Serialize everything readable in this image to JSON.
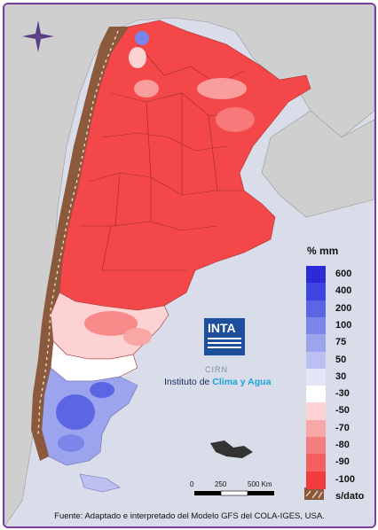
{
  "legend": {
    "unit": "% mm",
    "items": [
      {
        "label": "600",
        "color": "#2a2ad6"
      },
      {
        "label": "400",
        "color": "#3d46e0"
      },
      {
        "label": "200",
        "color": "#5c66e4"
      },
      {
        "label": "100",
        "color": "#7c86ea"
      },
      {
        "label": "75",
        "color": "#9da4ee"
      },
      {
        "label": "50",
        "color": "#bcc1f2"
      },
      {
        "label": "30",
        "color": "#e3e5f7"
      },
      {
        "label": "-30",
        "color": "#ffffff"
      },
      {
        "label": "-50",
        "color": "#fcd2d2"
      },
      {
        "label": "-70",
        "color": "#f9a6a6"
      },
      {
        "label": "-80",
        "color": "#f77e7e"
      },
      {
        "label": "-90",
        "color": "#f55f5f"
      },
      {
        "label": "-100",
        "color": "#f23c3c"
      }
    ],
    "nodata_label": "s/dato",
    "nodata_color": "#8b5a3c"
  },
  "scale_bar": {
    "labels": [
      "0",
      "250",
      "500 Km"
    ]
  },
  "logo": {
    "name": "INTA",
    "cirn": "CIRN",
    "institute_prefix": "Instituto de ",
    "institute_accent": "Clima y Agua"
  },
  "source": "Fuente: Adaptado e interpretado del Modelo GFS del COLA-IGES, USA.",
  "colors": {
    "frame_border": "#7a3f9e",
    "ocean": "#d9dde9",
    "neighbor_land": "#c8c8c8",
    "deficit_main": "#f4474a"
  }
}
